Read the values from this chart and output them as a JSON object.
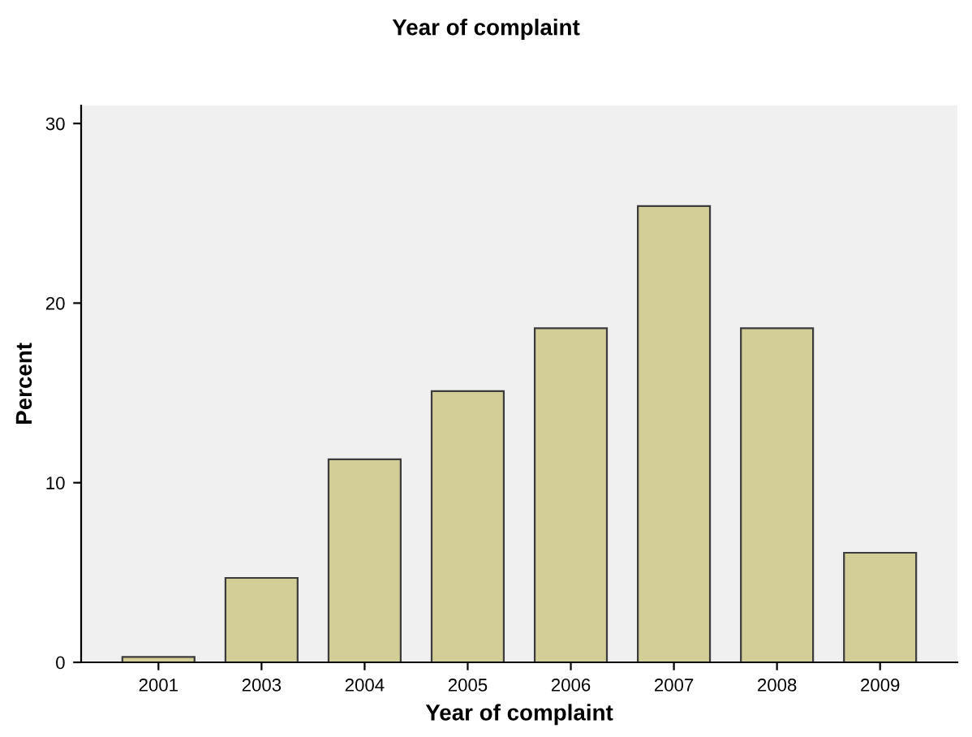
{
  "chart_data": {
    "type": "bar",
    "title": "Year of complaint",
    "xlabel": "Year of complaint",
    "ylabel": "Percent",
    "categories": [
      "2001",
      "2003",
      "2004",
      "2005",
      "2006",
      "2007",
      "2008",
      "2009"
    ],
    "values": [
      0.3,
      4.7,
      11.3,
      15.1,
      18.6,
      25.4,
      18.6,
      6.1
    ],
    "color": "#d3ce98",
    "ylim": [
      0,
      31
    ],
    "yticks": [
      0,
      10,
      20,
      30
    ],
    "grid": false,
    "legend": false
  }
}
